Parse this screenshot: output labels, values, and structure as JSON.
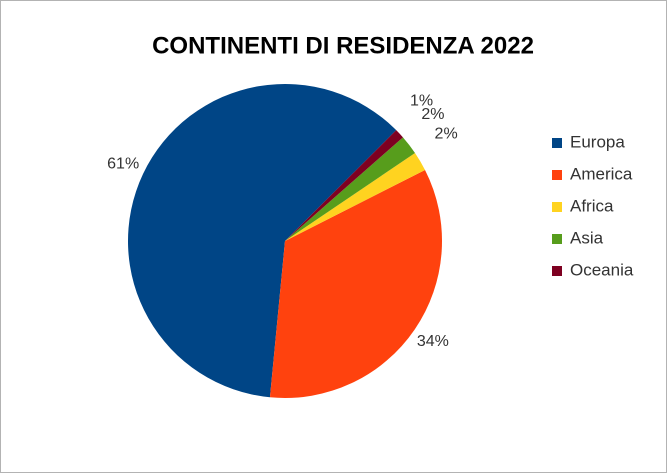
{
  "chart_data": {
    "type": "pie",
    "title": "CONTINENTI DI RESIDENZA 2022",
    "categories": [
      "Europa",
      "America",
      "Africa",
      "Asia",
      "Oceania"
    ],
    "values": [
      61,
      34,
      2,
      2,
      1
    ],
    "value_labels": [
      "61%",
      "34%",
      "2%",
      "2%",
      "1%"
    ],
    "colors": [
      "#004586",
      "#ff420e",
      "#ffd320",
      "#579d1c",
      "#7e0021"
    ],
    "legend": "right"
  }
}
